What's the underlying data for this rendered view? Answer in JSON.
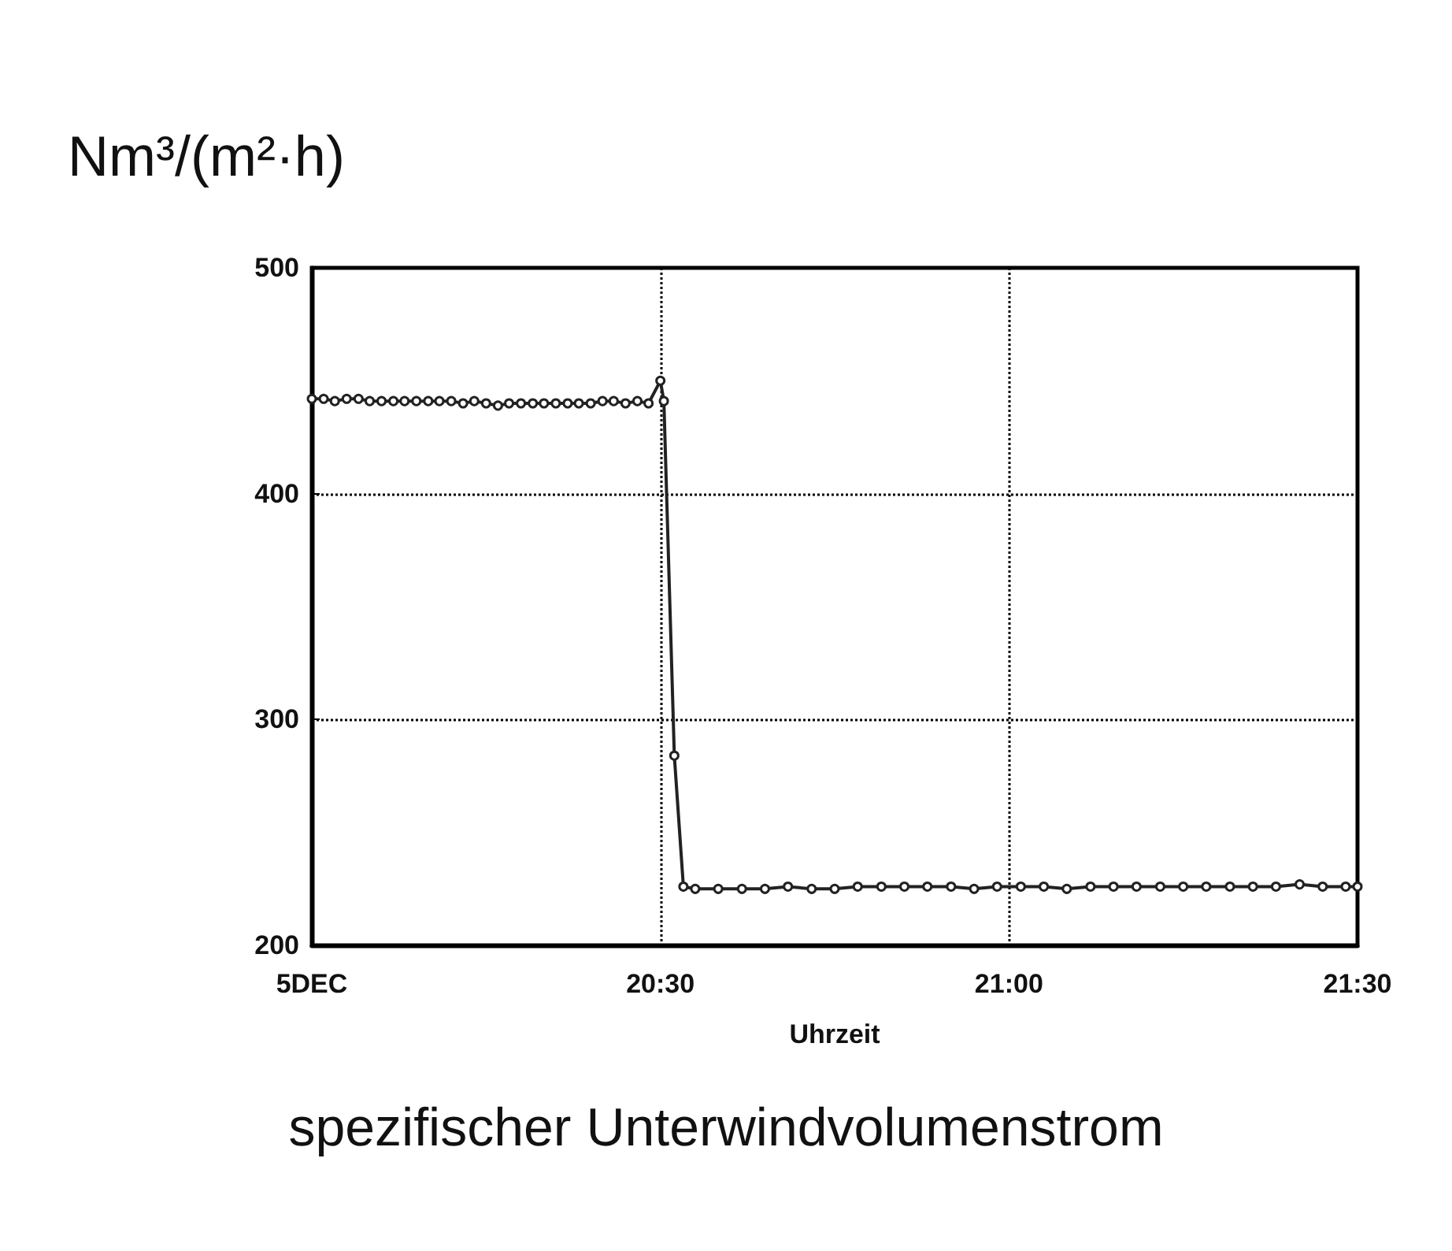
{
  "chart_data": {
    "type": "line",
    "title": "spezifischer Unterwindvolumenstrom",
    "xlabel": "Uhrzeit",
    "ylabel": "Nm³/(m²·h)",
    "xlim": [
      20,
      21.5
    ],
    "xticks": [
      {
        "value": 20,
        "label": "5DEC"
      },
      {
        "value": 20.5,
        "label": "20:30"
      },
      {
        "value": 21,
        "label": "21:00"
      },
      {
        "value": 21.5,
        "label": "21:30"
      }
    ],
    "ylim": [
      200,
      500
    ],
    "yticks": [
      200,
      300,
      400,
      500
    ],
    "grid": true,
    "marker": "circle",
    "line_style": "solid",
    "series": [
      {
        "color": "#222222",
        "x": [
          20,
          20.017,
          20.033,
          20.05,
          20.067,
          20.083,
          20.1,
          20.117,
          20.133,
          20.15,
          20.167,
          20.183,
          20.2,
          20.217,
          20.233,
          20.25,
          20.267,
          20.283,
          20.3,
          20.317,
          20.333,
          20.35,
          20.367,
          20.383,
          20.4,
          20.417,
          20.433,
          20.45,
          20.467,
          20.483,
          20.5,
          20.505,
          20.52,
          20.533,
          20.55,
          20.583,
          20.617,
          20.65,
          20.683,
          20.717,
          20.75,
          20.783,
          20.817,
          20.85,
          20.883,
          20.917,
          20.95,
          20.983,
          21.017,
          21.05,
          21.083,
          21.117,
          21.15,
          21.183,
          21.217,
          21.25,
          21.283,
          21.317,
          21.35,
          21.383,
          21.417,
          21.45,
          21.483,
          21.5
        ],
        "values": [
          442,
          442,
          441,
          442,
          442,
          441,
          441,
          441,
          441,
          441,
          441,
          441,
          441,
          440,
          441,
          440,
          439,
          440,
          440,
          440,
          440,
          440,
          440,
          440,
          440,
          441,
          441,
          440,
          441,
          440,
          450,
          441,
          284,
          226,
          225,
          225,
          225,
          225,
          226,
          225,
          225,
          226,
          226,
          226,
          226,
          226,
          225,
          226,
          226,
          226,
          225,
          226,
          226,
          226,
          226,
          226,
          226,
          226,
          226,
          226,
          227,
          226,
          226,
          226
        ]
      }
    ]
  }
}
